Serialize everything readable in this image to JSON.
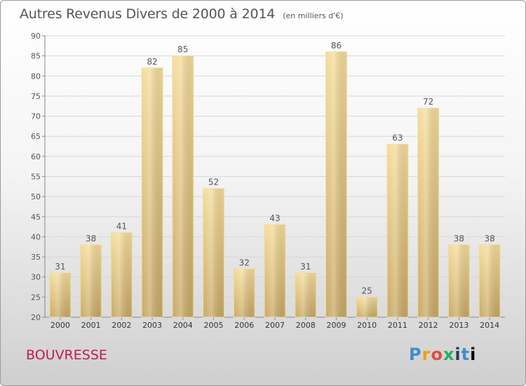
{
  "chart_data": {
    "type": "bar",
    "title": "Autres Revenus Divers de 2000 à 2014",
    "unit_label": "(en milliers d'€)",
    "categories": [
      "2000",
      "2001",
      "2002",
      "2003",
      "2004",
      "2005",
      "2006",
      "2007",
      "2008",
      "2009",
      "2010",
      "2011",
      "2012",
      "2013",
      "2014"
    ],
    "values": [
      31,
      38,
      41,
      82,
      85,
      52,
      32,
      43,
      31,
      86,
      25,
      63,
      72,
      38,
      38
    ],
    "ylim": [
      20,
      90
    ],
    "yticks": [
      20,
      25,
      30,
      35,
      40,
      45,
      50,
      55,
      60,
      65,
      70,
      75,
      80,
      85,
      90
    ],
    "grid": true,
    "bar_color": "#e8c878"
  },
  "footer": {
    "commune": "BOUVRESSE",
    "logo_letters": [
      "P",
      "r",
      "o",
      "x",
      "i",
      "t",
      "i"
    ]
  }
}
